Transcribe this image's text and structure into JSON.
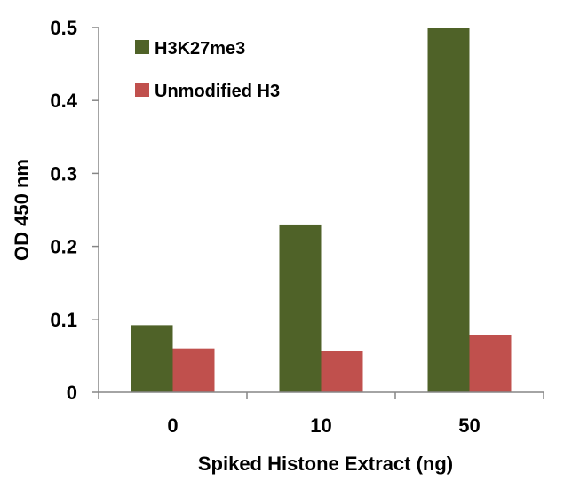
{
  "chart_data": {
    "type": "bar",
    "xlabel": "Spiked Histone Extract (ng)",
    "ylabel": "OD 450 nm",
    "categories": [
      "0",
      "10",
      "50"
    ],
    "ylim": [
      0,
      0.5
    ],
    "yticks": [
      0,
      0.1,
      0.2,
      0.3,
      0.4,
      0.5
    ],
    "ytick_labels": [
      "0",
      "0.1",
      "0.2",
      "0.3",
      "0.4",
      "0.5"
    ],
    "grid": false,
    "legend_position": "top-left",
    "series": [
      {
        "name": "H3K27me3",
        "color": "#4f6228",
        "values": [
          0.092,
          0.23,
          0.5
        ]
      },
      {
        "name": "Unmodified H3",
        "color": "#c0504d",
        "values": [
          0.06,
          0.057,
          0.078
        ]
      }
    ]
  }
}
